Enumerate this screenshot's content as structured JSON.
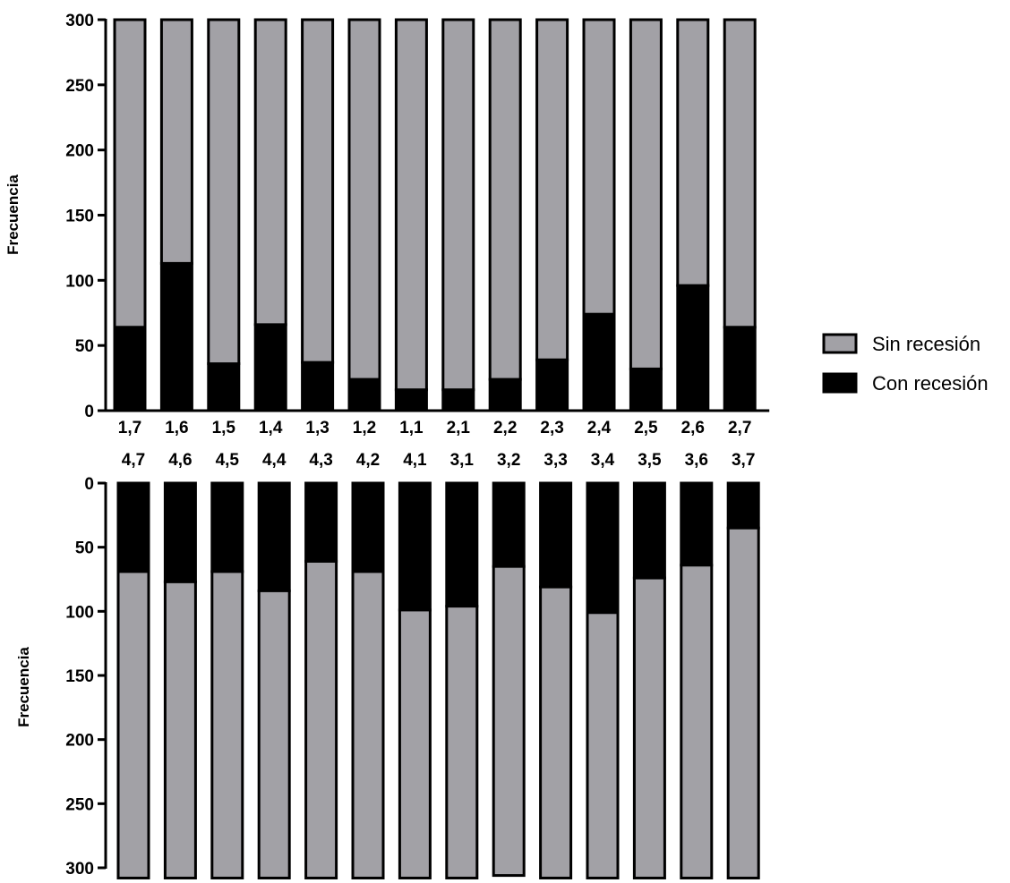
{
  "chart_data": [
    {
      "type": "bar",
      "stacked": true,
      "orientation": "upward",
      "categories": [
        "1,7",
        "1,6",
        "1,5",
        "1,4",
        "1,3",
        "1,2",
        "1,1",
        "2,1",
        "2,2",
        "2,3",
        "2,4",
        "2,5",
        "2,6",
        "2,7"
      ],
      "series": [
        {
          "name": "Con recesión",
          "color": "#000000",
          "values": [
            64,
            113,
            36,
            66,
            37,
            24,
            16,
            16,
            24,
            39,
            74,
            32,
            96,
            64
          ]
        },
        {
          "name": "Sin recesión",
          "color": "#a2a1a6",
          "values": [
            236,
            187,
            264,
            234,
            263,
            276,
            284,
            284,
            276,
            261,
            226,
            268,
            204,
            236
          ]
        }
      ],
      "ylabel": "Frecuencia",
      "ylim": [
        0,
        300
      ],
      "yticks": [
        "0",
        "50",
        "100",
        "150",
        "200",
        "250",
        "300"
      ],
      "grid": false
    },
    {
      "type": "bar",
      "stacked": true,
      "orientation": "downward",
      "categories": [
        "4,7",
        "4,6",
        "4,5",
        "4,4",
        "4,3",
        "4,2",
        "4,1",
        "3,1",
        "3,2",
        "3,3",
        "3,4",
        "3,5",
        "3,6",
        "3,7"
      ],
      "series": [
        {
          "name": "Con recesión",
          "color": "#000000",
          "values": [
            69,
            77,
            69,
            84,
            61,
            69,
            99,
            96,
            65,
            81,
            101,
            74,
            64,
            35
          ]
        },
        {
          "name": "Sin recesión",
          "color": "#a2a1a6",
          "values": [
            239,
            231,
            239,
            224,
            247,
            239,
            209,
            212,
            241,
            227,
            207,
            234,
            244,
            273
          ]
        }
      ],
      "ylabel": "Frecuencia",
      "ylim": [
        0,
        300
      ],
      "yticks": [
        "0",
        "50",
        "100",
        "150",
        "200",
        "250",
        "300"
      ],
      "grid": false
    }
  ],
  "legend": {
    "placement": "right",
    "items": [
      {
        "label": "Sin recesión",
        "color": "#a2a1a6"
      },
      {
        "label": "Con recesión",
        "color": "#000000"
      }
    ]
  }
}
